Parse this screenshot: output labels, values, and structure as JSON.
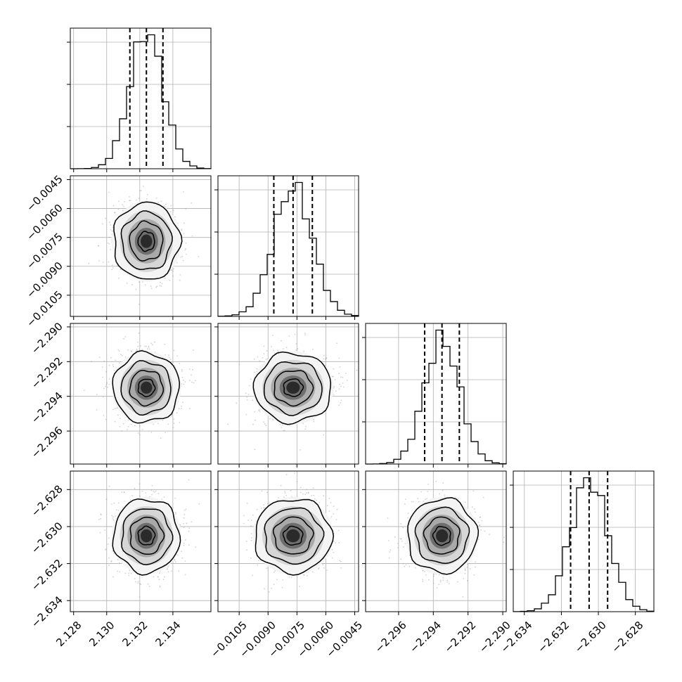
{
  "chart_data": {
    "type": "corner",
    "n_params": 4,
    "grid": true,
    "colors": {
      "ink": "#000000",
      "grid": "#b0b0b0",
      "background": "#ffffff"
    },
    "params": [
      {
        "center": 2.1324,
        "sigma": 0.001,
        "range": [
          2.1278,
          2.1363
        ],
        "ticks": [
          "2.128",
          "2.130",
          "2.132",
          "2.134"
        ],
        "quantiles": [
          2.1314,
          2.1324,
          2.1334
        ]
      },
      {
        "center": -0.0077,
        "sigma": 0.001,
        "range": [
          -0.0116,
          -0.0043
        ],
        "ticks": [
          "−0.0105",
          "−0.0090",
          "−0.0075",
          "−0.0060",
          "−0.0045"
        ],
        "quantiles": [
          -0.0087,
          -0.0077,
          -0.0067
        ]
      },
      {
        "center": -2.2935,
        "sigma": 0.001,
        "range": [
          -2.2979,
          -2.2898
        ],
        "ticks": [
          "−2.296",
          "−2.294",
          "−2.292",
          "−2.290"
        ],
        "quantiles": [
          -2.2945,
          -2.2935,
          -2.2925
        ]
      },
      {
        "center": -2.6305,
        "sigma": 0.001,
        "range": [
          -2.6346,
          -2.627
        ],
        "ticks": [
          "−2.634",
          "−2.632",
          "−2.630",
          "−2.628"
        ],
        "quantiles": [
          -2.6315,
          -2.6305,
          -2.6295
        ]
      }
    ],
    "histogram_bins": 20,
    "contour_levels": [
      "0.5-sigma",
      "1-sigma",
      "1.5-sigma",
      "2-sigma"
    ]
  }
}
